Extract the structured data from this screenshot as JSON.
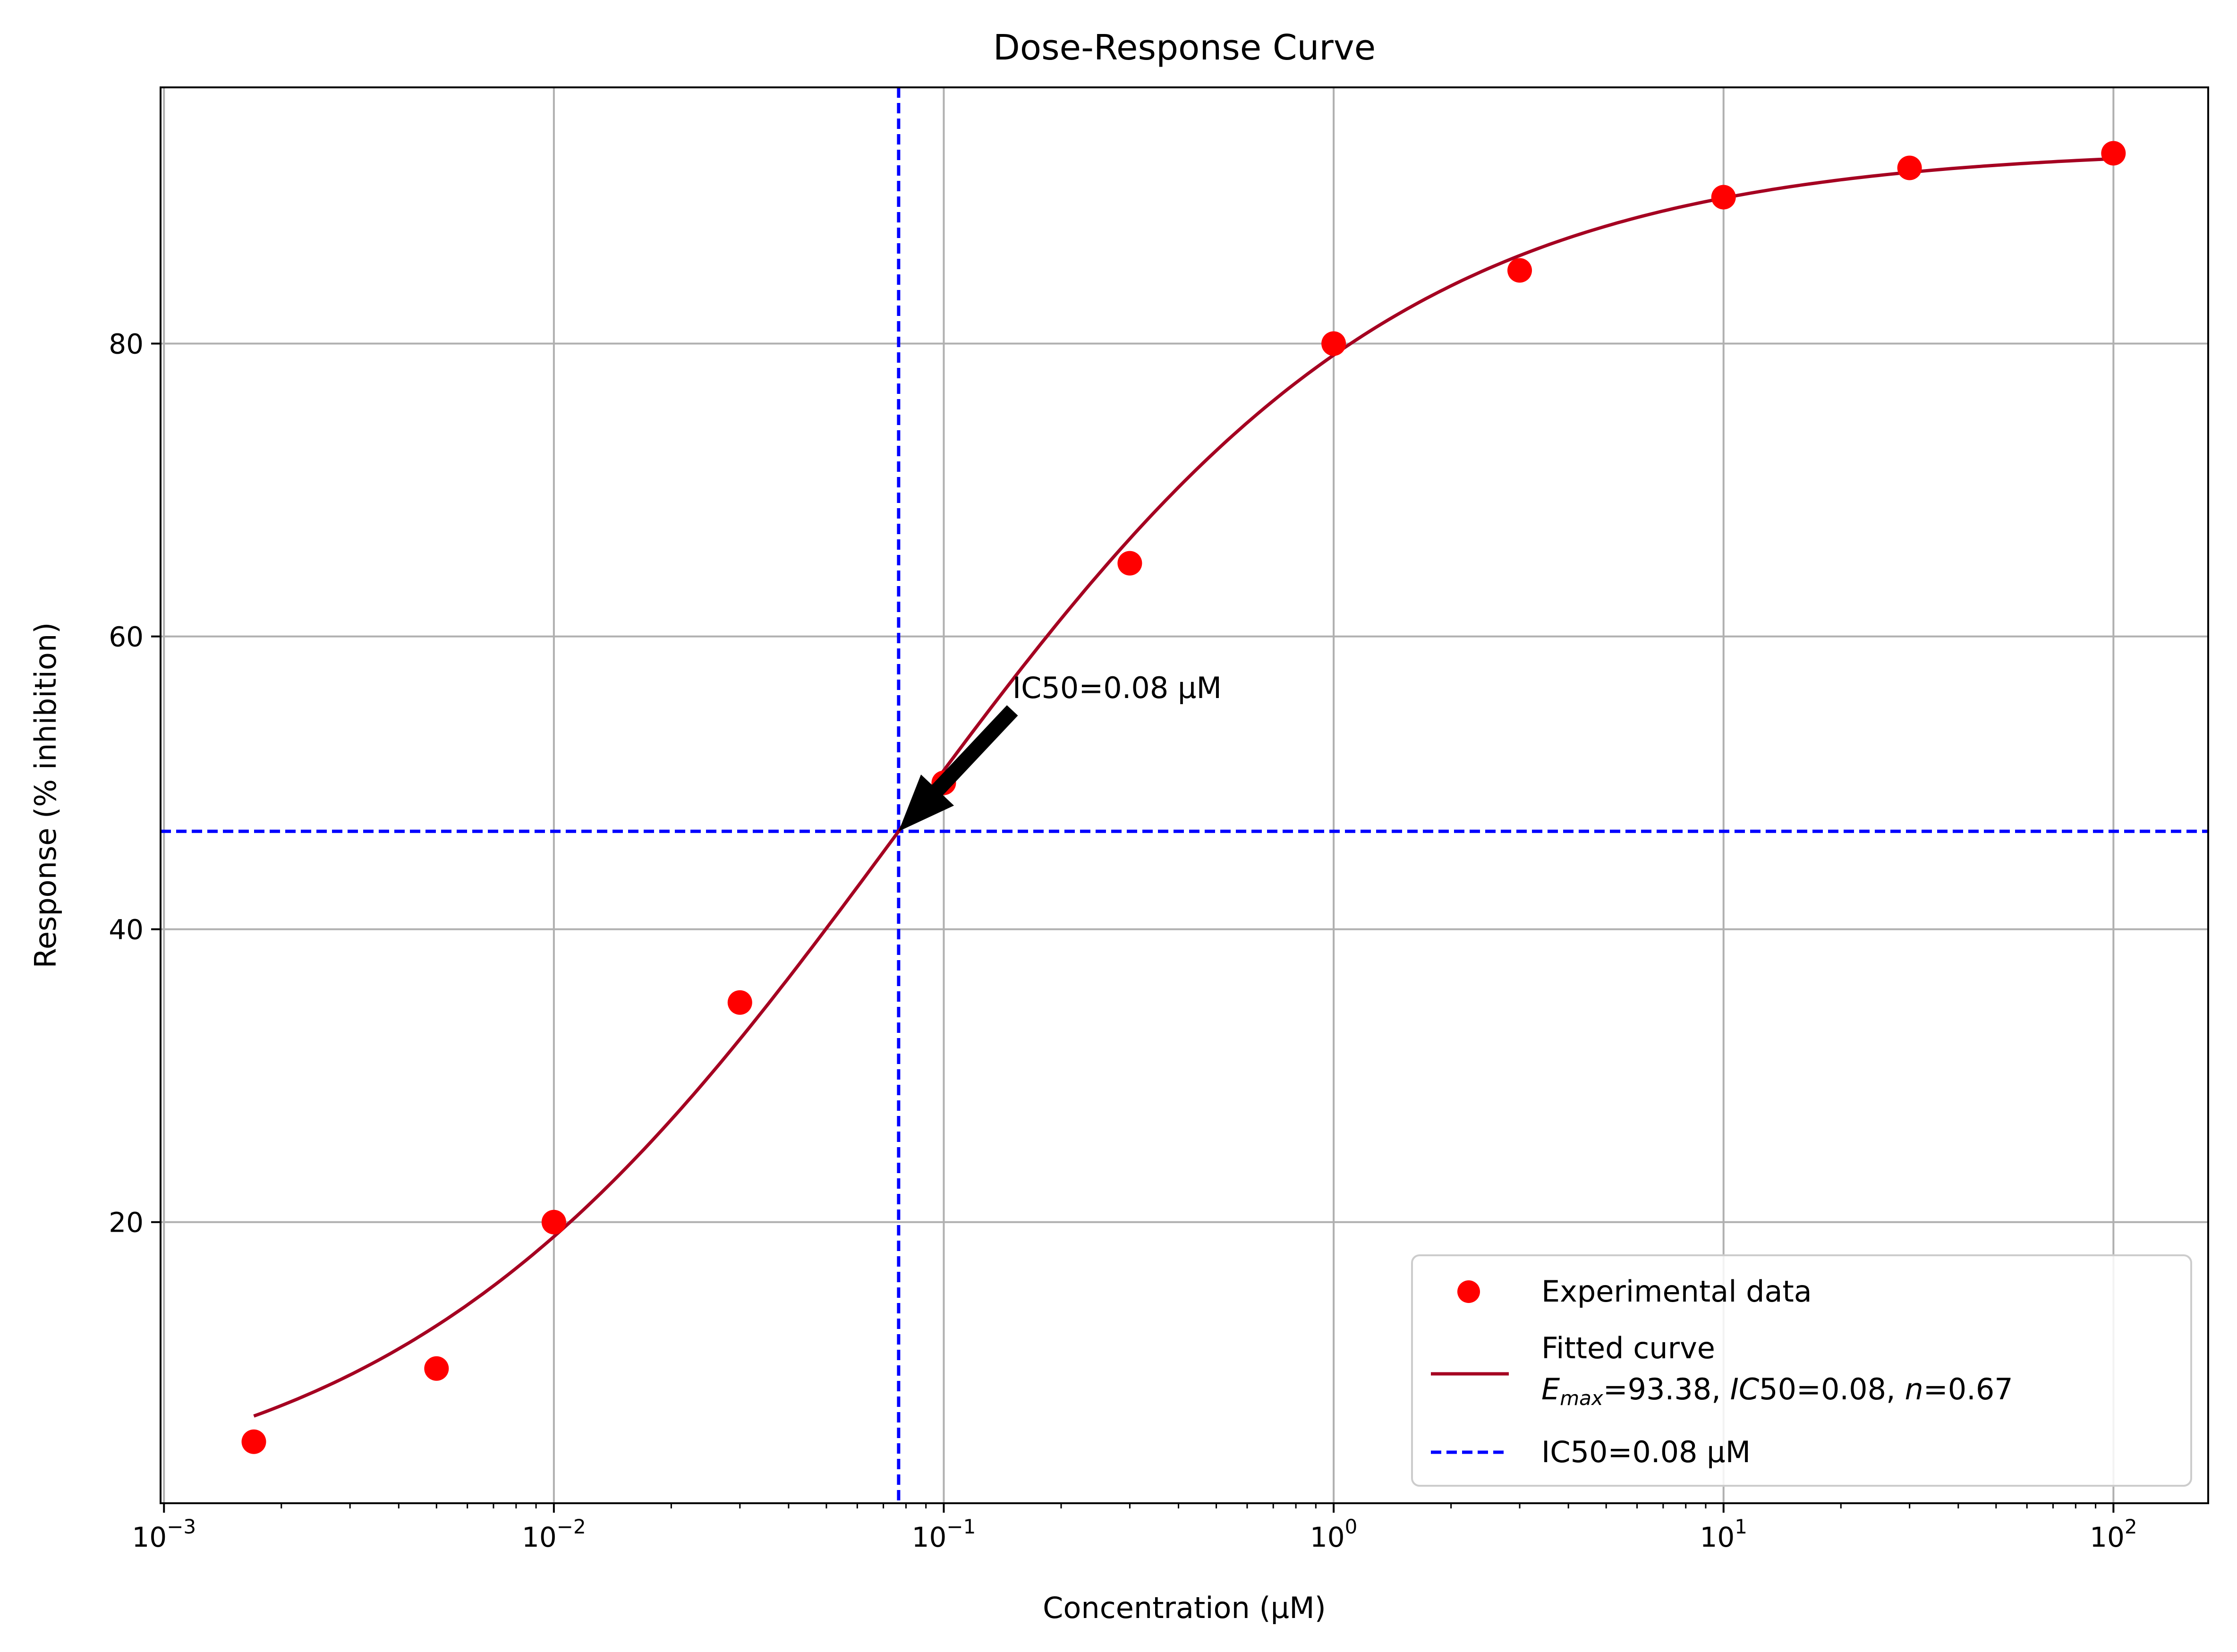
{
  "chart_data": {
    "type": "scatter",
    "title": "Dose-Response Curve",
    "xlabel": "Concentration (µM)",
    "ylabel": "Response (% inhibition)",
    "x_scale": "log",
    "xlim": [
      0.00098,
      175
    ],
    "ylim": [
      0.8,
      97.5
    ],
    "grid": true,
    "x_major_ticks": [
      0.001,
      0.01,
      0.1,
      1,
      10,
      100
    ],
    "x_tick_labels": [
      {
        "base": "10",
        "exp": "−3"
      },
      {
        "base": "10",
        "exp": "−2"
      },
      {
        "base": "10",
        "exp": "−1"
      },
      {
        "base": "10",
        "exp": "0"
      },
      {
        "base": "10",
        "exp": "1"
      },
      {
        "base": "10",
        "exp": "2"
      }
    ],
    "y_ticks": [
      20,
      40,
      60,
      80
    ],
    "y_tick_labels": [
      "20",
      "40",
      "60",
      "80"
    ],
    "series": [
      {
        "name": "Experimental data",
        "kind": "scatter",
        "color": "#ff0000",
        "x": [
          0.0017,
          0.005,
          0.01,
          0.03,
          0.1,
          0.3,
          1,
          3,
          10,
          30,
          100
        ],
        "y": [
          5,
          10,
          20,
          35,
          50,
          65,
          80,
          85,
          90,
          92,
          93
        ]
      },
      {
        "name": "Fitted curve",
        "name_line2": {
          "e": "E",
          "sub": "max",
          "a": "=93.38, ",
          "ic": "IC",
          "b": "50=0.08, ",
          "n": "n",
          "c": "=0.67"
        },
        "kind": "line",
        "color": "#a50021",
        "model": {
          "emax": 93.38,
          "ic50": 0.0766,
          "n": 0.67
        },
        "x_range": [
          0.0017,
          100
        ]
      },
      {
        "name": "IC50=0.08 µM",
        "kind": "reference-lines",
        "color": "#0000ff",
        "x": 0.0766,
        "y": 46.69
      }
    ],
    "annotation": {
      "text": "IC50=0.08 µM",
      "x": 0.0766,
      "y": 46.69,
      "text_x": 0.15,
      "text_y": 56.5
    },
    "legend_position": "lower right"
  }
}
